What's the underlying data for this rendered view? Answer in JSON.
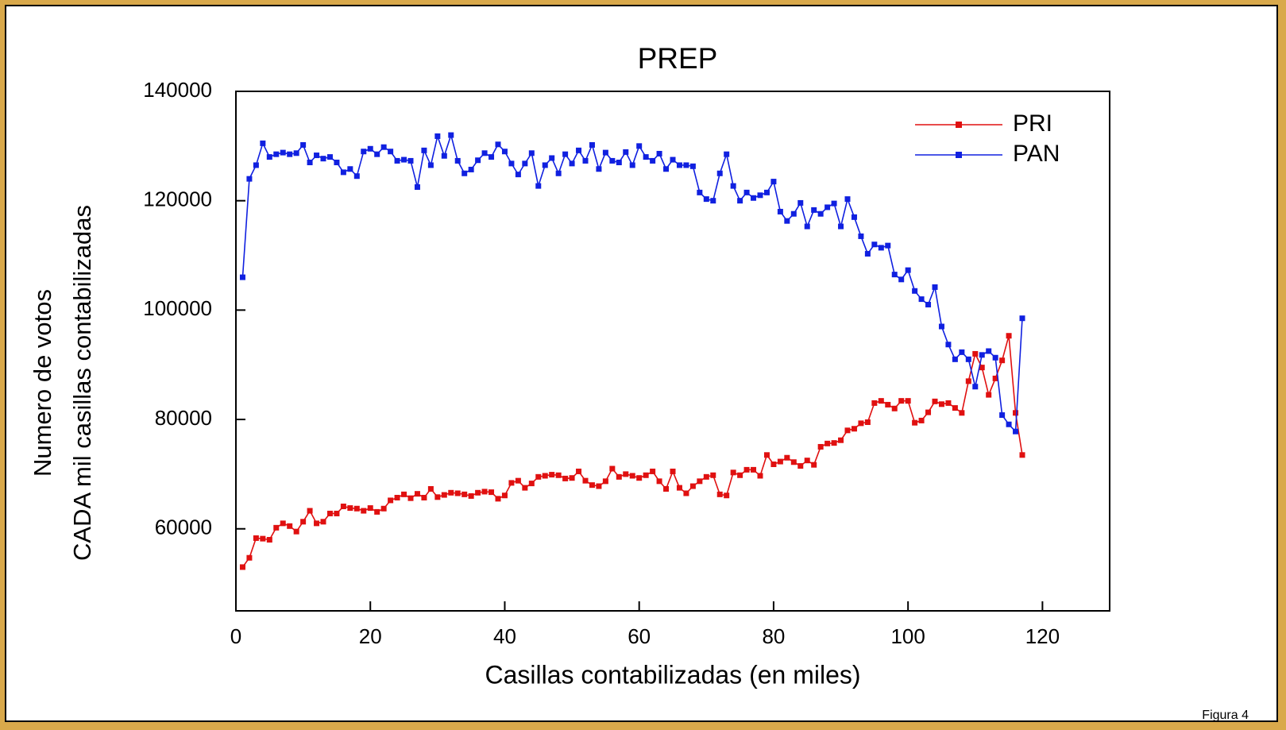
{
  "chart_data": {
    "type": "line",
    "title": "PREP",
    "x_label": "Casillas contabilizadas (en miles)",
    "y_label": [
      "Numero de votos",
      "CADA mil casillas contabilizadas"
    ],
    "footnote": "Figura 4",
    "xlim": [
      0,
      130
    ],
    "xticks": [
      0,
      20,
      40,
      60,
      80,
      100,
      120
    ],
    "ylim": [
      45000,
      140000
    ],
    "yticks": [
      60000,
      80000,
      100000,
      120000,
      140000
    ],
    "legend": "upper right",
    "x": [
      1,
      2,
      3,
      4,
      5,
      6,
      7,
      8,
      9,
      10,
      11,
      12,
      13,
      14,
      15,
      16,
      17,
      18,
      19,
      20,
      21,
      22,
      23,
      24,
      25,
      26,
      27,
      28,
      29,
      30,
      31,
      32,
      33,
      34,
      35,
      36,
      37,
      38,
      39,
      40,
      41,
      42,
      43,
      44,
      45,
      46,
      47,
      48,
      49,
      50,
      51,
      52,
      53,
      54,
      55,
      56,
      57,
      58,
      59,
      60,
      61,
      62,
      63,
      64,
      65,
      66,
      67,
      68,
      69,
      70,
      71,
      72,
      73,
      74,
      75,
      76,
      77,
      78,
      79,
      80,
      81,
      82,
      83,
      84,
      85,
      86,
      87,
      88,
      89,
      90,
      91,
      92,
      93,
      94,
      95,
      96,
      97,
      98,
      99,
      100,
      101,
      102,
      103,
      104,
      105,
      106,
      107,
      108,
      109,
      110,
      111,
      112,
      113,
      114,
      115,
      116,
      117
    ],
    "series": [
      {
        "name": "PRI",
        "color": "#e01010",
        "values": [
          53000,
          54700,
          58300,
          58200,
          58000,
          60200,
          61000,
          60500,
          59500,
          61300,
          63300,
          61000,
          61300,
          62800,
          62800,
          64100,
          63800,
          63700,
          63300,
          63800,
          63100,
          63700,
          65200,
          65700,
          66300,
          65600,
          66400,
          65700,
          67300,
          65800,
          66200,
          66600,
          66500,
          66300,
          66000,
          66600,
          66800,
          66700,
          65500,
          66100,
          68400,
          68800,
          67500,
          68300,
          69500,
          69700,
          69900,
          69800,
          69200,
          69300,
          70500,
          68800,
          68000,
          67800,
          68700,
          71000,
          69500,
          70000,
          69700,
          69300,
          69800,
          70500,
          68700,
          67300,
          70500,
          67500,
          66500,
          67800,
          68700,
          69500,
          69800,
          66300,
          66100,
          70300,
          69800,
          70800,
          70800,
          69700,
          73500,
          71800,
          72300,
          73000,
          72200,
          71500,
          72500,
          71700,
          75000,
          75600,
          75700,
          76200,
          78000,
          78300,
          79300,
          79500,
          83000,
          83400,
          82700,
          82000,
          83400,
          83400,
          79400,
          79800,
          81300,
          83300,
          82800,
          83000,
          82100,
          81200,
          87000,
          92000,
          89500,
          84500,
          87500,
          90800,
          95300,
          81200,
          73500
        ]
      },
      {
        "name": "PAN",
        "color": "#1020e0",
        "values": [
          106000,
          124000,
          126500,
          130500,
          128000,
          128500,
          128800,
          128500,
          128700,
          130200,
          127000,
          128300,
          127700,
          128000,
          127000,
          125200,
          125800,
          124500,
          129000,
          129500,
          128500,
          129800,
          129000,
          127300,
          127500,
          127300,
          122500,
          129200,
          126500,
          131800,
          128200,
          132000,
          127300,
          125000,
          125700,
          127400,
          128700,
          128000,
          130300,
          129000,
          126800,
          124800,
          126800,
          128700,
          122700,
          126500,
          127800,
          125000,
          128500,
          126800,
          129200,
          127300,
          130200,
          125800,
          128800,
          127300,
          127000,
          128900,
          126500,
          130000,
          128000,
          127300,
          128600,
          125800,
          127500,
          126500,
          126500,
          126300,
          121500,
          120300,
          120000,
          125000,
          128500,
          122700,
          120000,
          121500,
          120500,
          121000,
          121500,
          123500,
          118000,
          116300,
          117600,
          119600,
          115300,
          118300,
          117600,
          118800,
          119500,
          115300,
          120300,
          117000,
          113500,
          110300,
          112000,
          111400,
          111800,
          106500,
          105600,
          107300,
          103500,
          102000,
          101000,
          104200,
          97000,
          93700,
          91000,
          92300,
          91000,
          86000,
          91800,
          92500,
          91300,
          80800,
          79100,
          77800,
          98500
        ]
      }
    ]
  }
}
